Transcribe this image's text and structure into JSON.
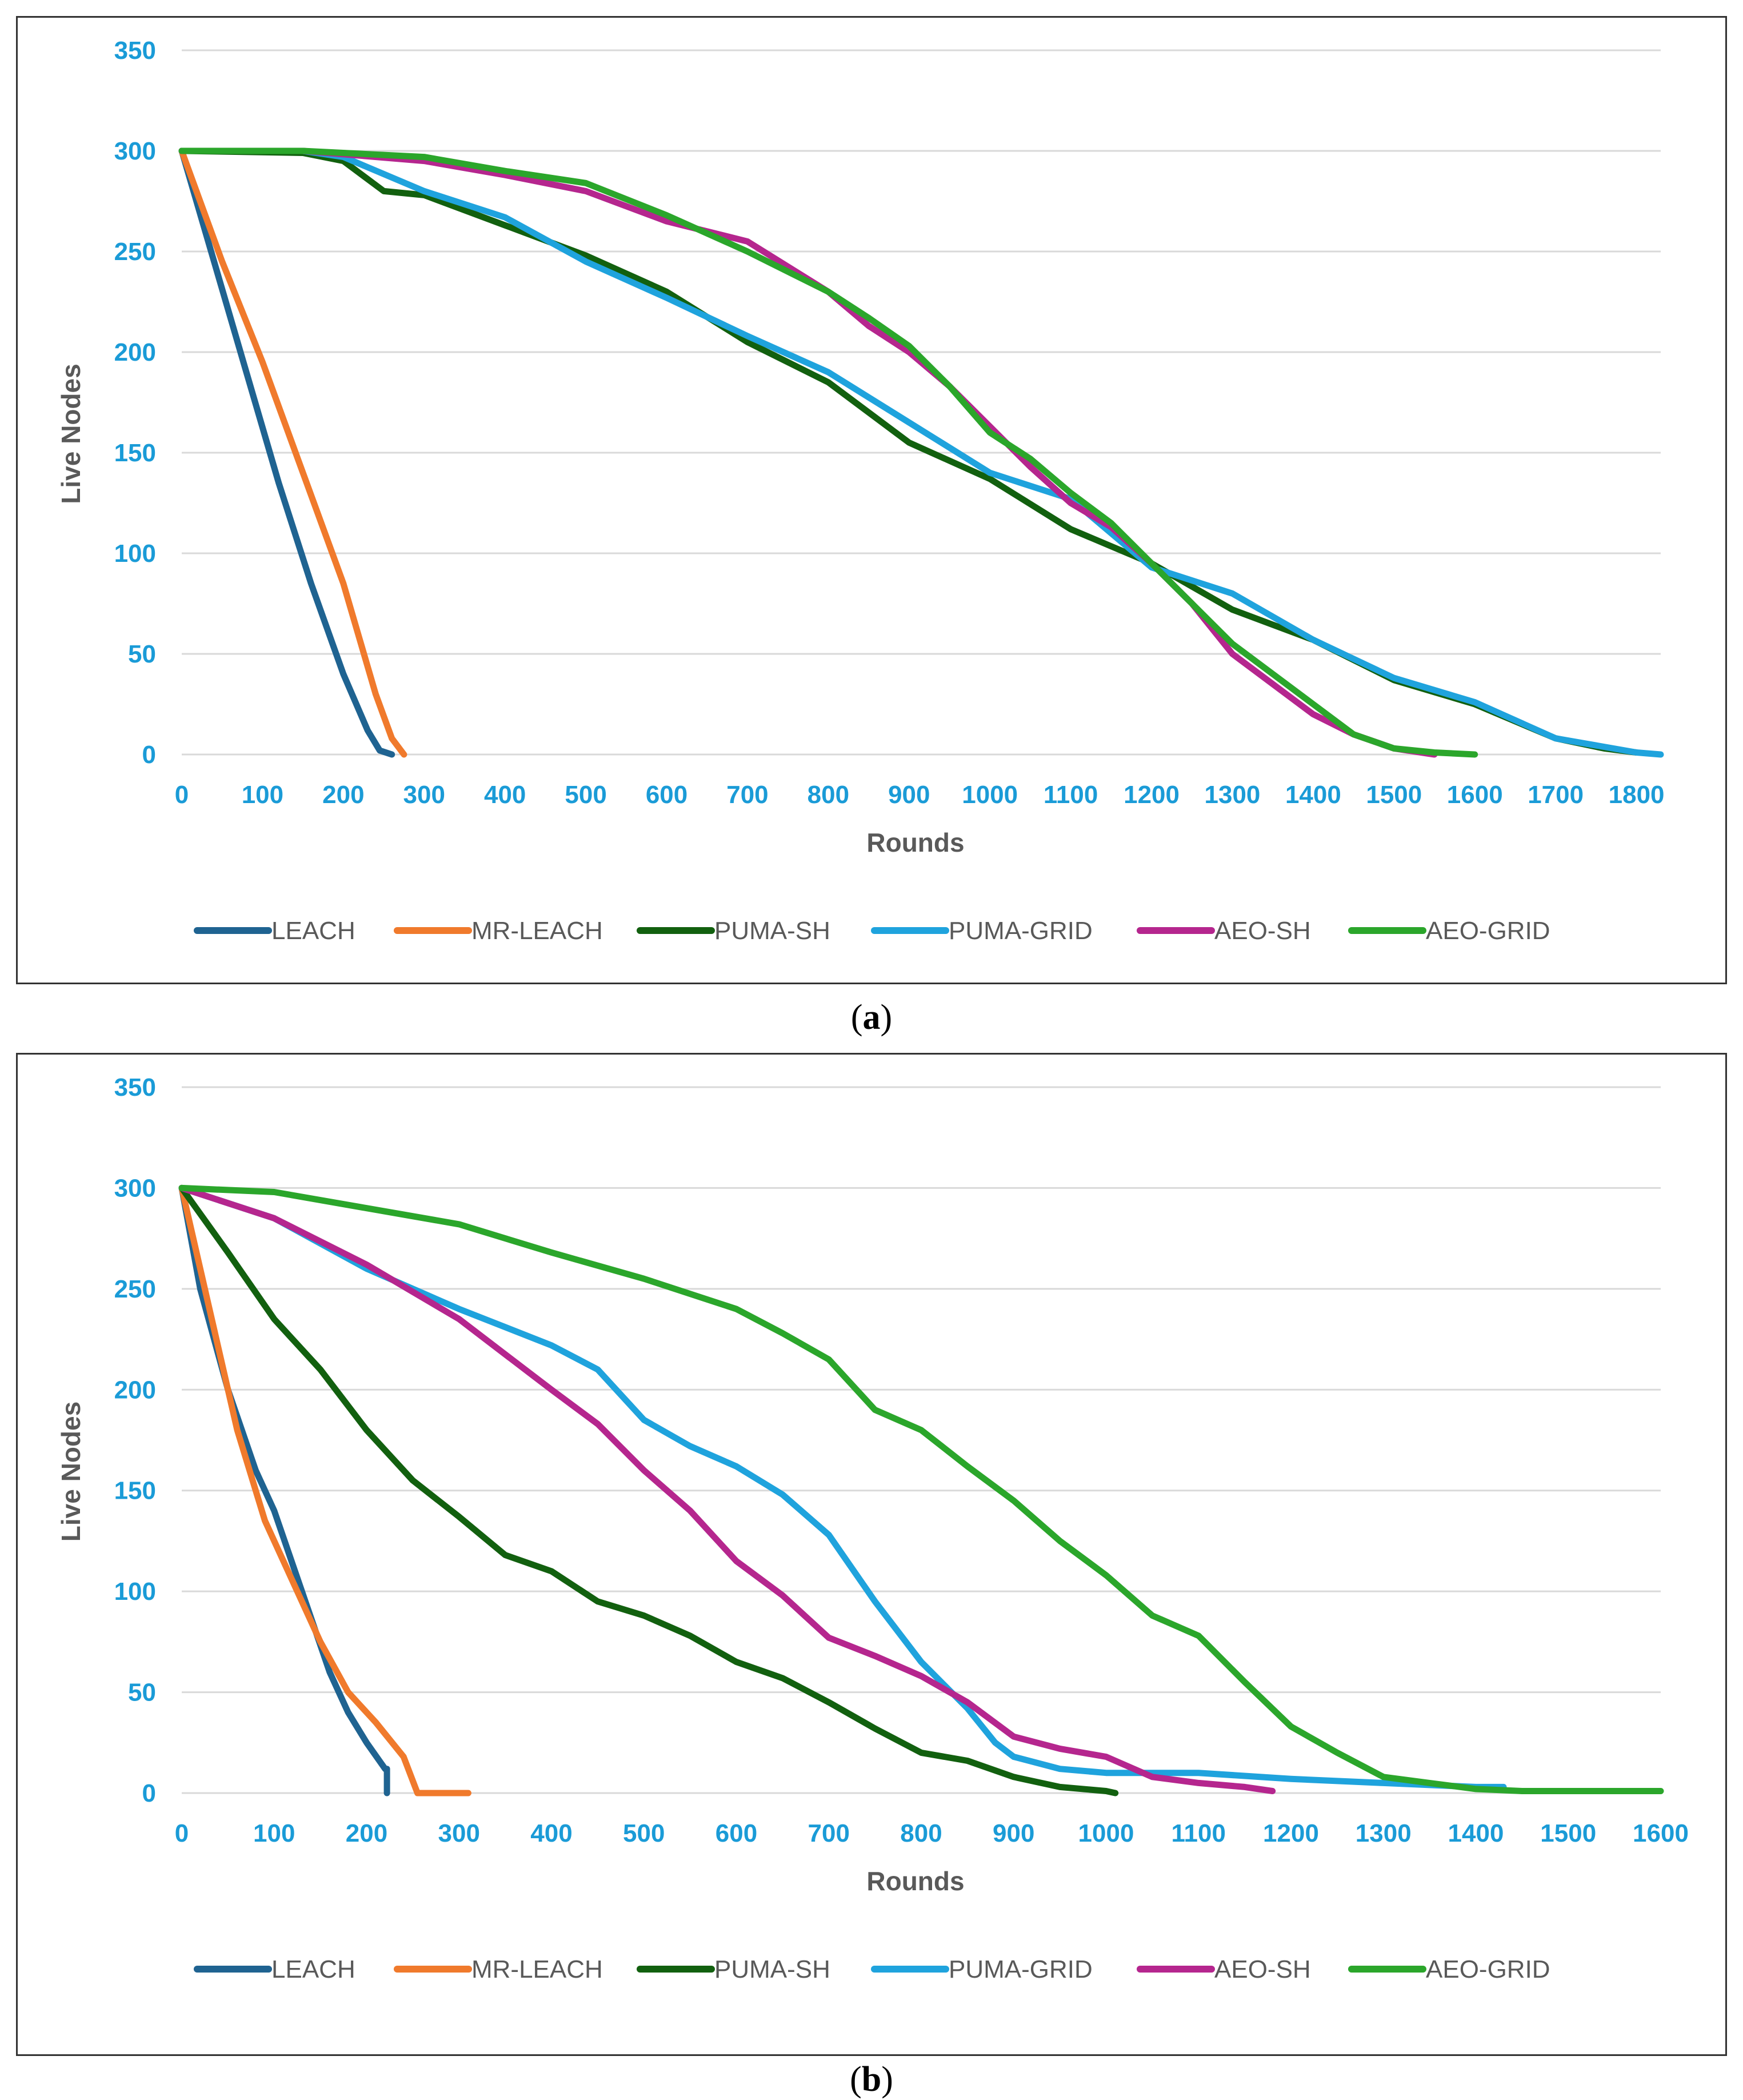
{
  "captions": {
    "a": "a",
    "b": "b"
  },
  "chart_data": [
    {
      "id": "a",
      "type": "line",
      "title": "",
      "xlabel": "Rounds",
      "ylabel": "Live Nodes",
      "xlim": [
        0,
        1830
      ],
      "ylim": [
        0,
        350
      ],
      "xticks": [
        0,
        100,
        200,
        300,
        400,
        500,
        600,
        700,
        800,
        900,
        1000,
        1100,
        1200,
        1300,
        1400,
        1500,
        1600,
        1700,
        1800
      ],
      "yticks": [
        0,
        50,
        100,
        150,
        200,
        250,
        300,
        350
      ],
      "grid": "horizontal",
      "legend": "bottom",
      "series": [
        {
          "name": "LEACH",
          "color": "#1F6391",
          "x": [
            0,
            40,
            80,
            120,
            160,
            200,
            230,
            245,
            260
          ],
          "y": [
            300,
            245,
            190,
            135,
            85,
            40,
            12,
            2,
            0
          ]
        },
        {
          "name": "MR-LEACH",
          "color": "#F07A2C",
          "x": [
            0,
            50,
            100,
            150,
            200,
            240,
            260,
            275
          ],
          "y": [
            300,
            245,
            195,
            140,
            85,
            30,
            8,
            0
          ]
        },
        {
          "name": "PUMA-SH",
          "color": "#12600F",
          "x": [
            0,
            150,
            200,
            250,
            300,
            400,
            500,
            600,
            700,
            800,
            900,
            1000,
            1100,
            1200,
            1300,
            1400,
            1500,
            1600,
            1700,
            1760,
            1800
          ],
          "y": [
            300,
            299,
            295,
            280,
            278,
            263,
            248,
            230,
            205,
            185,
            155,
            137,
            112,
            95,
            72,
            57,
            37,
            25,
            8,
            3,
            1
          ]
        },
        {
          "name": "PUMA-GRID",
          "color": "#1FA3DD",
          "x": [
            0,
            150,
            200,
            300,
            400,
            500,
            600,
            700,
            800,
            900,
            1000,
            1100,
            1200,
            1300,
            1400,
            1500,
            1600,
            1700,
            1800,
            1830
          ],
          "y": [
            300,
            300,
            297,
            280,
            267,
            245,
            227,
            208,
            190,
            165,
            140,
            127,
            93,
            80,
            57,
            38,
            26,
            8,
            1,
            0
          ]
        },
        {
          "name": "AEO-SH",
          "color": "#B5268E",
          "x": [
            0,
            150,
            300,
            400,
            500,
            600,
            700,
            800,
            850,
            900,
            950,
            1000,
            1050,
            1100,
            1150,
            1200,
            1250,
            1300,
            1400,
            1450,
            1500,
            1550
          ],
          "y": [
            300,
            300,
            295,
            288,
            280,
            265,
            255,
            230,
            213,
            200,
            183,
            163,
            143,
            125,
            113,
            95,
            75,
            50,
            20,
            10,
            3,
            0
          ]
        },
        {
          "name": "AEO-GRID",
          "color": "#2BA62B",
          "x": [
            0,
            150,
            300,
            400,
            500,
            600,
            700,
            800,
            850,
            900,
            950,
            1000,
            1050,
            1100,
            1150,
            1200,
            1250,
            1300,
            1400,
            1450,
            1500,
            1550,
            1600
          ],
          "y": [
            300,
            300,
            297,
            290,
            284,
            268,
            250,
            230,
            217,
            203,
            183,
            160,
            147,
            130,
            115,
            95,
            75,
            55,
            25,
            10,
            3,
            1,
            0
          ]
        }
      ]
    },
    {
      "id": "b",
      "type": "line",
      "title": "",
      "xlabel": "Rounds",
      "ylabel": "Live Nodes",
      "xlim": [
        0,
        1600
      ],
      "ylim": [
        0,
        350
      ],
      "xticks": [
        0,
        100,
        200,
        300,
        400,
        500,
        600,
        700,
        800,
        900,
        1000,
        1100,
        1200,
        1300,
        1400,
        1500,
        1600
      ],
      "yticks": [
        0,
        50,
        100,
        150,
        200,
        250,
        300,
        350
      ],
      "grid": "horizontal",
      "legend": "bottom",
      "series": [
        {
          "name": "LEACH",
          "color": "#1F6391",
          "x": [
            0,
            20,
            50,
            80,
            100,
            130,
            160,
            180,
            200,
            220,
            222,
            222
          ],
          "y": [
            300,
            250,
            200,
            160,
            140,
            100,
            60,
            40,
            25,
            12,
            12,
            0
          ]
        },
        {
          "name": "MR-LEACH",
          "color": "#F07A2C",
          "x": [
            0,
            30,
            60,
            90,
            120,
            150,
            180,
            210,
            240,
            255,
            310
          ],
          "y": [
            300,
            240,
            180,
            135,
            105,
            75,
            50,
            35,
            18,
            0,
            0
          ]
        },
        {
          "name": "PUMA-SH",
          "color": "#12600F",
          "x": [
            0,
            50,
            100,
            150,
            200,
            250,
            300,
            350,
            400,
            450,
            500,
            550,
            600,
            650,
            700,
            750,
            800,
            850,
            900,
            950,
            1000,
            1010
          ],
          "y": [
            300,
            268,
            235,
            210,
            180,
            155,
            137,
            118,
            110,
            95,
            88,
            78,
            65,
            57,
            45,
            32,
            20,
            16,
            8,
            3,
            1,
            0
          ]
        },
        {
          "name": "PUMA-GRID",
          "color": "#1FA3DD",
          "x": [
            0,
            100,
            200,
            300,
            400,
            450,
            500,
            550,
            600,
            650,
            700,
            750,
            800,
            850,
            880,
            900,
            950,
            1000,
            1100,
            1200,
            1300,
            1350,
            1400,
            1430
          ],
          "y": [
            300,
            285,
            260,
            240,
            222,
            210,
            185,
            172,
            162,
            148,
            128,
            95,
            65,
            42,
            25,
            18,
            12,
            10,
            10,
            7,
            5,
            4,
            3,
            3
          ]
        },
        {
          "name": "AEO-SH",
          "color": "#B5268E",
          "x": [
            0,
            100,
            200,
            300,
            400,
            450,
            500,
            550,
            600,
            650,
            700,
            750,
            800,
            850,
            900,
            950,
            1000,
            1050,
            1100,
            1150,
            1180
          ],
          "y": [
            300,
            285,
            262,
            235,
            200,
            183,
            160,
            140,
            115,
            98,
            77,
            68,
            58,
            45,
            28,
            22,
            18,
            8,
            5,
            3,
            1
          ]
        },
        {
          "name": "AEO-GRID",
          "color": "#2BA62B",
          "x": [
            0,
            100,
            200,
            300,
            400,
            500,
            600,
            650,
            700,
            750,
            800,
            850,
            900,
            950,
            1000,
            1050,
            1100,
            1150,
            1200,
            1250,
            1300,
            1350,
            1400,
            1450,
            1500,
            1600
          ],
          "y": [
            300,
            298,
            290,
            282,
            268,
            255,
            240,
            228,
            215,
            190,
            180,
            162,
            145,
            125,
            108,
            88,
            78,
            55,
            33,
            20,
            8,
            5,
            2,
            1,
            1,
            1
          ]
        }
      ]
    }
  ]
}
